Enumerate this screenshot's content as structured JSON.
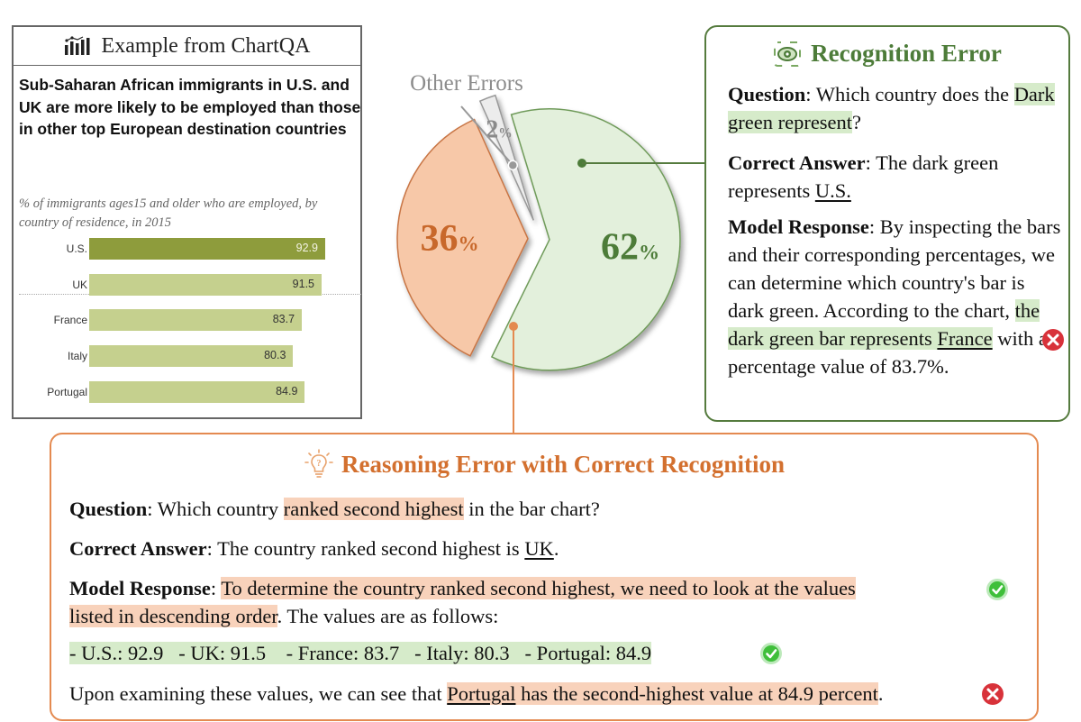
{
  "chartqa": {
    "header": "Example from ChartQA",
    "title": "Sub-Saharan African immigrants in U.S. and UK are more likely to be employed than those in other top European destination countries",
    "subtitle": "% of immigrants ages15 and older who are employed, by country of residence, in 2015"
  },
  "chart_data": [
    {
      "type": "bar",
      "orientation": "horizontal",
      "title": "Sub-Saharan African immigrants in U.S. and UK are more likely to be employed than those in other top European destination countries",
      "subtitle": "% of immigrants ages15 and older who are employed, by country of residence, in 2015",
      "categories": [
        "U.S.",
        "UK",
        "France",
        "Italy",
        "Portugal"
      ],
      "values": [
        92.9,
        91.5,
        83.7,
        80.3,
        84.9
      ],
      "value_labels": [
        "92.9",
        "91.5",
        "83.7",
        "80.3",
        "84.9"
      ],
      "xlim": [
        0,
        100
      ],
      "colors": {
        "highlight": "#8e9c3c",
        "default": "#c5d08e"
      }
    },
    {
      "type": "pie",
      "categories": [
        "Recognition Error",
        "Reasoning Error with Correct Recognition",
        "Other Errors"
      ],
      "values": [
        62,
        36,
        2
      ],
      "value_labels": [
        "62",
        "36",
        "2"
      ],
      "unit": "%",
      "annotations": [
        "Other Errors"
      ],
      "colors": {
        "recognition": "#e3f0dc",
        "reasoning": "#f7c8a8",
        "other": "#ececec"
      }
    }
  ],
  "pie": {
    "other_label": "Other Errors",
    "percent_sign": "%",
    "labels": [
      "62",
      "36",
      "2"
    ]
  },
  "recognition": {
    "title": "Recognition Error",
    "question_label": "Question",
    "question_pre": "Which country does the ",
    "question_hl": "Dark green represent",
    "question_post": "?",
    "answer_label": "Correct Answer",
    "answer_pre": "The dark green represents ",
    "answer_ul": "U.S.",
    "response_label": "Model Response",
    "response_pre": "By inspecting the bars and their corresponding percentages, we can determine which country's bar is dark green. According to the chart, ",
    "response_hl1": "the dark green bar represents ",
    "response_hl_ul": "France",
    "response_post": " with a percentage value of 83.7%."
  },
  "reasoning": {
    "title": "Reasoning Error with Correct Recognition",
    "question_label": "Question",
    "question_pre": "Which country ",
    "question_hl": "ranked second highest",
    "question_post": " in the bar chart?",
    "answer_label": "Correct Answer",
    "answer_pre": "The country ranked second highest is ",
    "answer_ul": "UK",
    "answer_post": ".",
    "response_label": "Model Response",
    "response_hl_1": "To determine the country ranked second highest, we need to look at the values",
    "response_hl_2": "listed in descending order",
    "response_post": ". The values are as follows:",
    "values_line": "- U.S.: 92.9   - UK: 91.5    - France: 83.7   - Italy: 80.3   - Portugal: 84.9",
    "final_pre": "Upon examining these values, we can see that ",
    "final_ul": "Portugal",
    "final_hl": " has the second-highest value at 84.9 percent",
    "final_post": "."
  },
  "colors": {
    "green_accent": "#4d7c39",
    "orange_accent": "#d3702f",
    "green_highlight": "#d6ebca",
    "orange_highlight": "#f8d2bb",
    "check_green": "#3fbf3a",
    "cross_red": "#d8323a"
  }
}
